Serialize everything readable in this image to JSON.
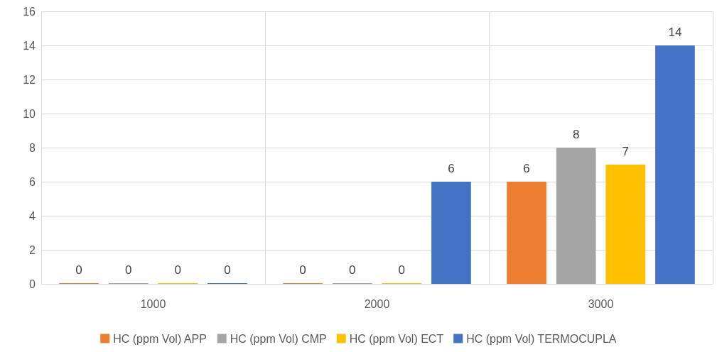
{
  "chart_data": {
    "type": "bar",
    "categories": [
      "1000",
      "2000",
      "3000"
    ],
    "series": [
      {
        "name": "HC (ppm Vol) APP",
        "color": "#ed7d31",
        "values": [
          0,
          0,
          6
        ]
      },
      {
        "name": "HC (ppm Vol) CMP",
        "color": "#a5a5a5",
        "values": [
          0,
          0,
          8
        ]
      },
      {
        "name": "HC (ppm Vol) ECT",
        "color": "#ffc000",
        "values": [
          0,
          0,
          7
        ]
      },
      {
        "name": "HC (ppm Vol) TERMOCUPLA",
        "color": "#4472c4",
        "values": [
          0,
          6,
          14
        ]
      }
    ],
    "ylim": [
      0,
      16
    ],
    "yticks": [
      0,
      2,
      4,
      6,
      8,
      10,
      12,
      14,
      16
    ],
    "grid": true,
    "legend": "bottom",
    "data_labels": true
  }
}
